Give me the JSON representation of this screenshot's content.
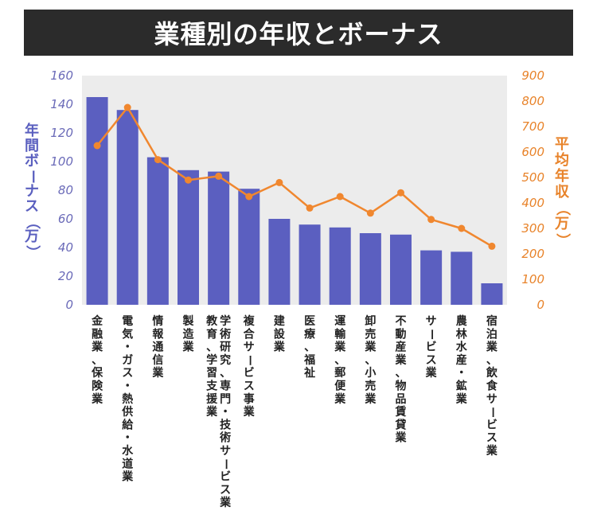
{
  "title": "業種別の年収とボーナス",
  "chart_data": {
    "type": "bar",
    "categories": [
      "金融業、保険業",
      "電気・ガス・熱供給・水道業",
      "情報通信業",
      "製造業",
      "学術研究、専門・技術サービス業",
      "複合サービス事業",
      "建設業",
      "医療、福祉",
      "運輸業、郵便業",
      "卸売業、小売業",
      "不動産業、物品賃貸業",
      "サービス業",
      "農林水産・鉱業",
      "宿泊業、飲食サービス業"
    ],
    "category_label_columns": [
      [
        "金融業、保険業"
      ],
      [
        "電気・ガス・熱供給・水道業"
      ],
      [
        "情報通信業"
      ],
      [
        "製造業"
      ],
      [
        "教育、学習支援業",
        "学術研究、専門・技術サービス業"
      ],
      [
        "複合サービス事業"
      ],
      [
        "建設業"
      ],
      [
        "医療、福祉"
      ],
      [
        "運輸業、郵便業"
      ],
      [
        "卸売業、小売業"
      ],
      [
        "不動産業、物品賃貸業"
      ],
      [
        "サービス業"
      ],
      [
        "農林水産・鉱業"
      ],
      [
        "宿泊業、飲食サービス業"
      ]
    ],
    "series": [
      {
        "values": [
          145,
          136,
          103,
          94,
          93,
          81,
          60,
          56,
          54,
          50,
          49,
          38,
          37,
          15
        ],
        "type": "bar",
        "axis": "left",
        "color": "#5b5fc0"
      },
      {
        "values": [
          625,
          775,
          570,
          490,
          505,
          425,
          480,
          380,
          425,
          360,
          440,
          335,
          300,
          230
        ],
        "type": "line",
        "axis": "right",
        "color": "#f0872f"
      }
    ],
    "ylabel_left": "年間ボーナス（万）",
    "ylabel_right": "平均年収（万）",
    "ylim_left": [
      0,
      160
    ],
    "ylim_right": [
      0,
      900
    ],
    "yticks_left": [
      "0",
      "20",
      "40",
      "60",
      "80",
      "100",
      "120",
      "140",
      "160"
    ],
    "yticks_right": [
      "0",
      "100",
      "200",
      "300",
      "400",
      "500",
      "600",
      "700",
      "800",
      "900"
    ],
    "plot_background": "#ececec",
    "grid": false,
    "legend": "none"
  }
}
